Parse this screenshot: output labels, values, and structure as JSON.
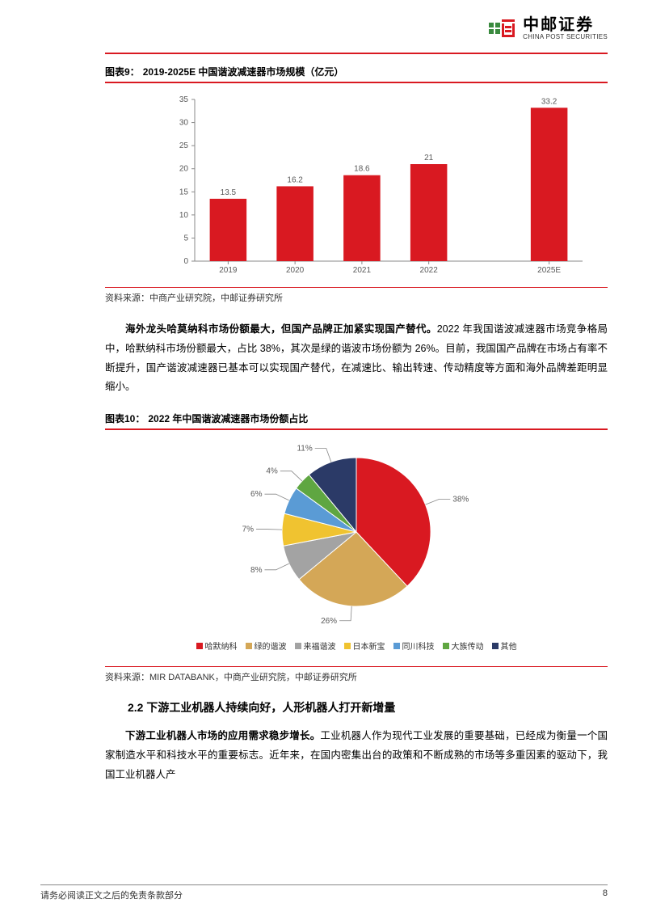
{
  "header": {
    "logo_cn": "中邮证券",
    "logo_en": "CHINA POST SECURITIES"
  },
  "chart9": {
    "title_prefix": "图表9：",
    "title": "2019-2025E 中国谐波减速器市场规模（亿元）",
    "type": "bar",
    "categories": [
      "2019",
      "2020",
      "2021",
      "2022",
      "2025E"
    ],
    "values": [
      13.5,
      16.2,
      18.6,
      21,
      33.2
    ],
    "value_labels": [
      "13.5",
      "16.2",
      "18.6",
      "21",
      "33.2"
    ],
    "bar_color": "#d91921",
    "ylim": [
      0,
      35
    ],
    "ytick_step": 5,
    "axis_color": "#888888",
    "label_color": "#595959",
    "label_fontsize": 10,
    "datalabel_fontsize": 10,
    "bar_width": 0.55,
    "source": "资料来源：中商产业研究院，中邮证券研究所"
  },
  "para1": {
    "lead": "海外龙头哈莫纳科市场份额最大，但国产品牌正加紧实现国产替代。",
    "body": "2022 年我国谐波减速器市场竞争格局中，哈默纳科市场份额最大，占比 38%，其次是绿的谐波市场份额为 26%。目前，我国国产品牌在市场占有率不断提升，国产谐波减速器已基本可以实现国产替代，在减速比、输出转速、传动精度等方面和海外品牌差距明显缩小。"
  },
  "chart10": {
    "title_prefix": "图表10：",
    "title": "2022 年中国谐波减速器市场份额占比",
    "type": "pie",
    "slices": [
      {
        "label": "哈默纳科",
        "value": 38,
        "color": "#d91921",
        "pct": "38%"
      },
      {
        "label": "绿的谐波",
        "value": 26,
        "color": "#d4a757",
        "pct": "26%"
      },
      {
        "label": "来福谐波",
        "value": 8,
        "color": "#a3a3a3",
        "pct": "8%"
      },
      {
        "label": "日本新宝",
        "value": 7,
        "color": "#f0c330",
        "pct": "7%"
      },
      {
        "label": "同川科技",
        "value": 6,
        "color": "#5a9bd5",
        "pct": "6%"
      },
      {
        "label": "大族传动",
        "value": 4,
        "color": "#5fa641",
        "pct": "4%"
      },
      {
        "label": "其他",
        "value": 11,
        "color": "#2b3a67",
        "pct": "11%"
      }
    ],
    "label_color": "#595959",
    "label_fontsize": 10,
    "source": "资料来源：MIR DATABANK，中商产业研究院，中邮证券研究所"
  },
  "section22": {
    "title": "2.2 下游工业机器人持续向好，人形机器人打开新增量"
  },
  "para2": {
    "lead": "下游工业机器人市场的应用需求稳步增长。",
    "body": "工业机器人作为现代工业发展的重要基础，已经成为衡量一个国家制造水平和科技水平的重要标志。近年来，在国内密集出台的政策和不断成熟的市场等多重因素的驱动下，我国工业机器人产"
  },
  "footer": {
    "disclaimer": "请务必阅读正文之后的免责条款部分",
    "page": "8"
  }
}
